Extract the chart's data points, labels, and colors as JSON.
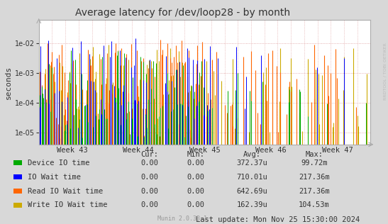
{
  "title": "Average latency for /dev/loop28 - by month",
  "ylabel": "seconds",
  "xlabel_ticks": [
    "Week 43",
    "Week 44",
    "Week 45",
    "Week 46",
    "Week 47"
  ],
  "ylim_log": [
    4e-06,
    0.06
  ],
  "bg_color": "#d8d8d8",
  "plot_bg_color": "#ffffff",
  "series": [
    {
      "name": "Device IO time",
      "color": "#00aa00"
    },
    {
      "name": "IO Wait time",
      "color": "#0000ff"
    },
    {
      "name": "Read IO Wait time",
      "color": "#ff6600"
    },
    {
      "name": "Write IO Wait time",
      "color": "#ccaa00"
    }
  ],
  "legend_cur": [
    "0.00",
    "0.00",
    "0.00",
    "0.00"
  ],
  "legend_min": [
    "0.00",
    "0.00",
    "0.00",
    "0.00"
  ],
  "legend_avg": [
    "372.37u",
    "710.01u",
    "642.69u",
    "162.39u"
  ],
  "legend_max": [
    "99.72m",
    "217.36m",
    "217.36m",
    "104.53m"
  ],
  "footer_left": "Munin 2.0.33-1",
  "footer_right": "Last update: Mon Nov 25 15:30:00 2024",
  "right_label": "RRDTOOL / TOBI OETIKER"
}
